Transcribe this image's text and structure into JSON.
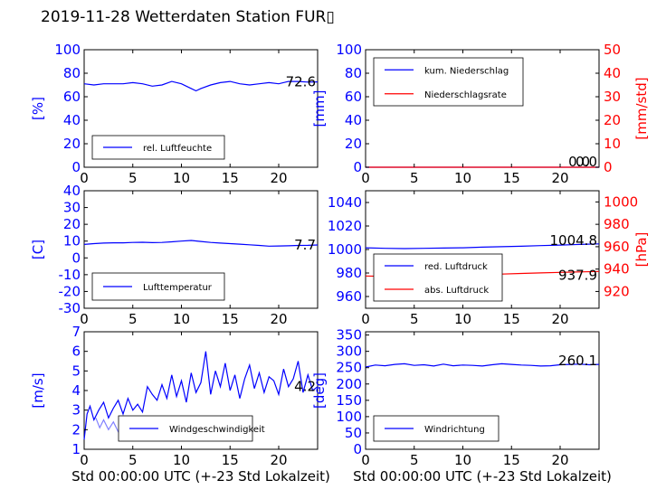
{
  "title": "2019-11-28 Wetterdaten Station FUR▯",
  "colors": {
    "left_axis": "#0000ff",
    "right_axis": "#ff0000",
    "line1": "#0000ff",
    "line2": "#ff0000",
    "line_light": "#8080ff"
  },
  "chart_data": [
    {
      "id": "humidity",
      "type": "line",
      "xlim": [
        0,
        24
      ],
      "ylim": [
        0,
        100
      ],
      "xticks": [
        0,
        5,
        10,
        15,
        20
      ],
      "yticks": [
        0,
        20,
        40,
        60,
        80,
        100
      ],
      "ylabel": "[%]",
      "legend_position": "lower-left",
      "series": [
        {
          "name": "rel. Luftfeuchte",
          "axis": "left",
          "color": "#0000ff",
          "x": [
            0,
            1,
            2,
            3,
            4,
            5,
            6,
            7,
            8,
            9,
            10,
            11,
            11.5,
            12,
            13,
            14,
            15,
            16,
            17,
            18,
            19,
            20,
            21,
            22,
            23,
            24
          ],
          "y": [
            71,
            70,
            71,
            71,
            71,
            72,
            71,
            69,
            70,
            73,
            71,
            67,
            65,
            67,
            70,
            72,
            73,
            71,
            70,
            71,
            72,
            71,
            73,
            73,
            72.5,
            72.6
          ]
        }
      ],
      "end_labels": [
        "72.6"
      ]
    },
    {
      "id": "precipitation",
      "type": "line",
      "xlim": [
        0,
        24
      ],
      "ylim": [
        0,
        100
      ],
      "y2lim": [
        0,
        50
      ],
      "xticks": [
        0,
        5,
        10,
        15,
        20
      ],
      "yticks": [
        0,
        20,
        40,
        60,
        80,
        100
      ],
      "y2ticks": [
        0,
        10,
        20,
        30,
        40,
        50
      ],
      "ylabel": "[mm]",
      "y2label": "[mm/std]",
      "legend_position": "upper-left",
      "series": [
        {
          "name": "kum. Niederschlag",
          "axis": "left",
          "color": "#0000ff",
          "x": [
            0,
            24
          ],
          "y": [
            0,
            0
          ]
        },
        {
          "name": "Niederschlagsrate",
          "axis": "right",
          "color": "#ff0000",
          "x": [
            0,
            24
          ],
          "y": [
            0,
            0
          ]
        }
      ],
      "end_labels": [
        "0.0",
        "0.0"
      ]
    },
    {
      "id": "temperature",
      "type": "line",
      "xlim": [
        0,
        24
      ],
      "ylim": [
        -30,
        40
      ],
      "xticks": [
        0,
        5,
        10,
        15,
        20
      ],
      "yticks": [
        -30,
        -20,
        -10,
        0,
        10,
        20,
        30,
        40
      ],
      "ylabel": "[C]",
      "legend_position": "lower-left",
      "series": [
        {
          "name": "Lufttemperatur",
          "axis": "left",
          "color": "#0000ff",
          "x": [
            0,
            1,
            2,
            3,
            4,
            5,
            6,
            7,
            8,
            9,
            10,
            11,
            12,
            13,
            14,
            15,
            16,
            17,
            18,
            19,
            20,
            21,
            22,
            23,
            24
          ],
          "y": [
            8,
            8.5,
            8.8,
            9,
            9,
            9.2,
            9.3,
            9.1,
            9.2,
            9.6,
            10,
            10.4,
            9.8,
            9.2,
            8.8,
            8.5,
            8.2,
            7.8,
            7.4,
            7,
            7.1,
            7.2,
            7.4,
            7.5,
            7.7
          ]
        }
      ],
      "end_labels": [
        "7.7"
      ]
    },
    {
      "id": "pressure",
      "type": "line",
      "xlim": [
        0,
        24
      ],
      "ylim": [
        950,
        1050
      ],
      "y2lim": [
        905,
        1010
      ],
      "xticks": [
        0,
        5,
        10,
        15,
        20
      ],
      "yticks": [
        960,
        980,
        1000,
        1020,
        1040
      ],
      "y2ticks": [
        920,
        940,
        960,
        980,
        1000
      ],
      "y2label": "[hPa]",
      "legend_position": "lower-left",
      "series": [
        {
          "name": "red. Luftdruck",
          "axis": "left",
          "color": "#0000ff",
          "x": [
            0,
            2,
            4,
            6,
            8,
            10,
            12,
            14,
            16,
            18,
            20,
            22,
            24
          ],
          "y": [
            1001.5,
            1001,
            1000.8,
            1001,
            1001.2,
            1001.5,
            1002,
            1002.4,
            1002.8,
            1003.3,
            1003.8,
            1004.3,
            1004.8
          ]
        },
        {
          "name": "abs. Luftdruck",
          "axis": "right",
          "color": "#ff0000",
          "x": [
            0,
            2,
            4,
            6,
            8,
            10,
            12,
            14,
            16,
            18,
            20,
            22,
            24
          ],
          "y": [
            933.8,
            933.5,
            933.3,
            933.6,
            933.9,
            934.3,
            934.9,
            935.5,
            936.1,
            936.6,
            937.1,
            937.5,
            937.9
          ]
        }
      ],
      "end_labels": [
        "1004.8",
        "937.9"
      ]
    },
    {
      "id": "wind_speed",
      "type": "line",
      "xlim": [
        0,
        24
      ],
      "ylim": [
        1,
        7
      ],
      "xticks": [
        0,
        5,
        10,
        15,
        20
      ],
      "yticks": [
        1,
        2,
        3,
        4,
        5,
        6,
        7
      ],
      "ylabel": "[m/s]",
      "xlabel": "Std 00:00:00 UTC (+-23 Std Lokalzeit)",
      "legend_position": "lower-center",
      "series": [
        {
          "name": "Windgeschwindigkeit",
          "axis": "left",
          "color": "#0000ff",
          "x": [
            0,
            0.3,
            0.6,
            1,
            1.5,
            2,
            2.5,
            3,
            3.5,
            4,
            4.5,
            5,
            5.5,
            6,
            6.5,
            7,
            7.5,
            8,
            8.5,
            9,
            9.5,
            10,
            10.5,
            11,
            11.5,
            12,
            12.5,
            13,
            13.5,
            14,
            14.5,
            15,
            15.5,
            16,
            16.5,
            17,
            17.5,
            18,
            18.5,
            19,
            19.5,
            20,
            20.5,
            21,
            21.5,
            22,
            22.5,
            23,
            23.5,
            24
          ],
          "y": [
            1.5,
            2.8,
            3.2,
            2.5,
            3.0,
            3.4,
            2.6,
            3.1,
            3.5,
            2.8,
            3.6,
            3.0,
            3.3,
            2.9,
            4.2,
            3.8,
            3.5,
            4.3,
            3.6,
            4.8,
            3.7,
            4.5,
            3.4,
            4.9,
            3.9,
            4.4,
            6.0,
            3.8,
            5.0,
            4.2,
            5.4,
            4.0,
            4.8,
            3.6,
            4.6,
            5.3,
            4.1,
            4.9,
            3.9,
            4.7,
            4.5,
            3.8,
            5.1,
            4.2,
            4.6,
            5.5,
            3.9,
            4.8,
            4.0,
            4.2
          ]
        },
        {
          "name": "",
          "axis": "left",
          "color": "#8080ff",
          "x": [
            1.2,
            1.6,
            2,
            2.5,
            3,
            3.5,
            4,
            4.5,
            5,
            5.5,
            6
          ],
          "y": [
            2.6,
            2.1,
            2.5,
            2.0,
            2.4,
            1.9,
            2.3,
            2.0,
            2.4,
            1.9,
            2.2
          ]
        }
      ],
      "end_labels": [
        "4.2"
      ]
    },
    {
      "id": "wind_direction",
      "type": "line",
      "xlim": [
        0,
        24
      ],
      "ylim": [
        0,
        360
      ],
      "xticks": [
        0,
        5,
        10,
        15,
        20
      ],
      "yticks": [
        0,
        50,
        100,
        150,
        200,
        250,
        300,
        350
      ],
      "ylabel": "[deg]",
      "xlabel": "Std 00:00:00 UTC (+-23 Std Lokalzeit)",
      "legend_position": "lower-left",
      "series": [
        {
          "name": "Windrichtung",
          "axis": "left",
          "color": "#0000ff",
          "x": [
            0,
            1,
            2,
            3,
            4,
            5,
            6,
            7,
            8,
            9,
            10,
            11,
            12,
            13,
            14,
            15,
            16,
            17,
            18,
            19,
            20,
            21,
            22,
            23,
            24
          ],
          "y": [
            252,
            258,
            256,
            260,
            262,
            257,
            259,
            255,
            261,
            256,
            258,
            257,
            255,
            259,
            262,
            260,
            258,
            257,
            255,
            256,
            259,
            260,
            261,
            259,
            260.1
          ]
        }
      ],
      "end_labels": [
        "260.1"
      ]
    }
  ]
}
